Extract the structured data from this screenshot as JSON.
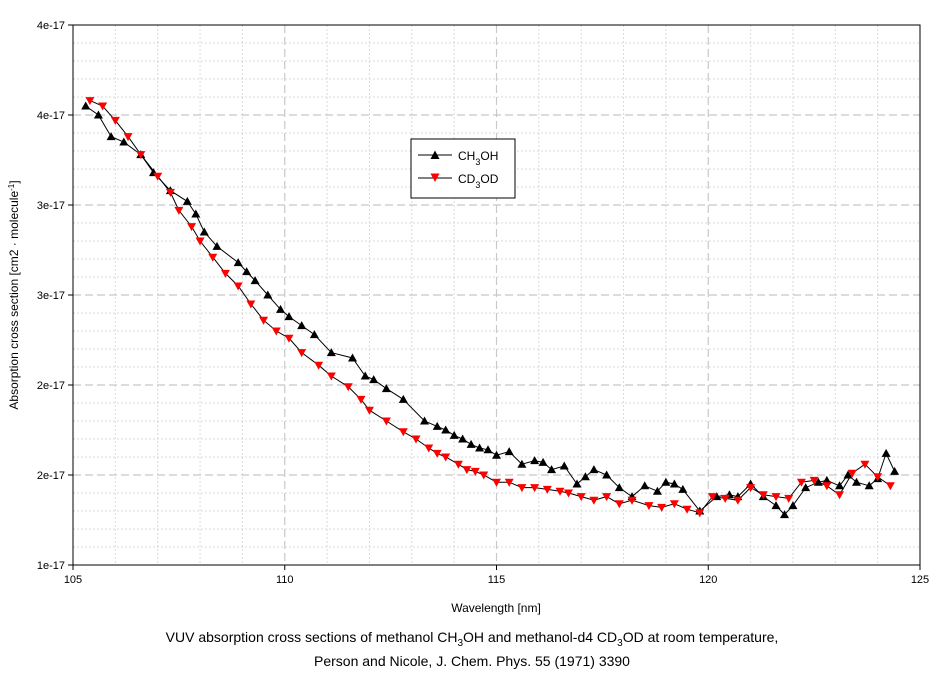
{
  "chart_data": {
    "type": "line",
    "title": "",
    "xlabel": "Wavelength [nm]",
    "ylabel_main": "Absorption cross section [cm2 · molecule",
    "ylabel_sup": "-1",
    "ylabel_end": "]",
    "xlim": [
      105,
      125
    ],
    "x_ticks": [
      105,
      110,
      115,
      120,
      125
    ],
    "x_tick_labels": [
      "105",
      "110",
      "115",
      "120",
      "125"
    ],
    "ylim": [
      1e-17,
      4e-17
    ],
    "y_ticks": [
      1e-17,
      1.5e-17,
      2e-17,
      2.5e-17,
      3e-17,
      3.5e-17,
      4e-17
    ],
    "y_tick_labels": [
      "1e-17",
      "2e-17",
      "2e-17",
      "3e-17",
      "3e-17",
      "4e-17",
      "4e-17"
    ],
    "grid": true,
    "legend_position": "upper-middle",
    "series": [
      {
        "name": "CH3OH",
        "legend_main": "CH",
        "legend_sub": "3",
        "legend_end": "OH",
        "color": "#000000",
        "marker": "triangle-up",
        "x": [
          105.3,
          105.6,
          105.9,
          106.2,
          106.6,
          106.9,
          107.3,
          107.7,
          107.9,
          108.1,
          108.4,
          108.9,
          109.1,
          109.3,
          109.6,
          109.9,
          110.1,
          110.4,
          110.7,
          111.1,
          111.6,
          111.9,
          112.1,
          112.4,
          112.8,
          113.3,
          113.6,
          113.8,
          114.0,
          114.2,
          114.4,
          114.6,
          114.8,
          115.0,
          115.3,
          115.6,
          115.9,
          116.1,
          116.3,
          116.6,
          116.9,
          117.1,
          117.3,
          117.6,
          117.9,
          118.2,
          118.5,
          118.8,
          119.0,
          119.2,
          119.4,
          119.8,
          120.2,
          120.5,
          120.7,
          121.0,
          121.3,
          121.6,
          121.8,
          122.0,
          122.3,
          122.6,
          122.8,
          123.1,
          123.3,
          123.5,
          123.8,
          124.0,
          124.2,
          124.4
        ],
        "y": [
          3.55e-17,
          3.5e-17,
          3.38e-17,
          3.35e-17,
          3.28e-17,
          3.18e-17,
          3.08e-17,
          3.02e-17,
          2.95e-17,
          2.85e-17,
          2.77e-17,
          2.68e-17,
          2.63e-17,
          2.58e-17,
          2.5e-17,
          2.42e-17,
          2.38e-17,
          2.33e-17,
          2.28e-17,
          2.18e-17,
          2.15e-17,
          2.05e-17,
          2.03e-17,
          1.98e-17,
          1.92e-17,
          1.8e-17,
          1.77e-17,
          1.75e-17,
          1.72e-17,
          1.7e-17,
          1.67e-17,
          1.65e-17,
          1.64e-17,
          1.61e-17,
          1.63e-17,
          1.56e-17,
          1.58e-17,
          1.57e-17,
          1.53e-17,
          1.55e-17,
          1.45e-17,
          1.49e-17,
          1.53e-17,
          1.5e-17,
          1.43e-17,
          1.38e-17,
          1.44e-17,
          1.41e-17,
          1.46e-17,
          1.45e-17,
          1.42e-17,
          1.3e-17,
          1.38e-17,
          1.39e-17,
          1.38e-17,
          1.45e-17,
          1.38e-17,
          1.33e-17,
          1.28e-17,
          1.33e-17,
          1.43e-17,
          1.46e-17,
          1.47e-17,
          1.44e-17,
          1.5e-17,
          1.46e-17,
          1.44e-17,
          1.48e-17,
          1.62e-17,
          1.52e-17
        ]
      },
      {
        "name": "CD3OD",
        "legend_main": "CD",
        "legend_sub": "3",
        "legend_end": "OD",
        "color": "#ff0000",
        "marker": "triangle-down",
        "x": [
          105.4,
          105.7,
          106.0,
          106.3,
          106.6,
          107.0,
          107.3,
          107.5,
          107.8,
          108.0,
          108.3,
          108.6,
          108.9,
          109.2,
          109.5,
          109.8,
          110.1,
          110.4,
          110.8,
          111.1,
          111.5,
          111.8,
          112.0,
          112.4,
          112.8,
          113.1,
          113.4,
          113.6,
          113.8,
          114.1,
          114.3,
          114.5,
          114.7,
          115.0,
          115.3,
          115.6,
          115.9,
          116.2,
          116.5,
          116.7,
          117.0,
          117.3,
          117.6,
          117.9,
          118.2,
          118.6,
          118.9,
          119.2,
          119.5,
          119.8,
          120.1,
          120.4,
          120.7,
          121.0,
          121.3,
          121.6,
          121.9,
          122.2,
          122.5,
          122.8,
          123.1,
          123.4,
          123.7,
          124.0,
          124.3
        ],
        "y": [
          3.58e-17,
          3.55e-17,
          3.47e-17,
          3.38e-17,
          3.28e-17,
          3.16e-17,
          3.07e-17,
          2.97e-17,
          2.88e-17,
          2.8e-17,
          2.71e-17,
          2.62e-17,
          2.55e-17,
          2.45e-17,
          2.36e-17,
          2.3e-17,
          2.26e-17,
          2.18e-17,
          2.11e-17,
          2.05e-17,
          1.99e-17,
          1.92e-17,
          1.86e-17,
          1.8e-17,
          1.74e-17,
          1.7e-17,
          1.65e-17,
          1.62e-17,
          1.6e-17,
          1.56e-17,
          1.53e-17,
          1.52e-17,
          1.5e-17,
          1.46e-17,
          1.46e-17,
          1.43e-17,
          1.43e-17,
          1.42e-17,
          1.41e-17,
          1.4e-17,
          1.38e-17,
          1.36e-17,
          1.38e-17,
          1.34e-17,
          1.36e-17,
          1.33e-17,
          1.32e-17,
          1.34e-17,
          1.31e-17,
          1.29e-17,
          1.38e-17,
          1.37e-17,
          1.36e-17,
          1.43e-17,
          1.39e-17,
          1.38e-17,
          1.37e-17,
          1.46e-17,
          1.47e-17,
          1.44e-17,
          1.39e-17,
          1.51e-17,
          1.56e-17,
          1.49e-17,
          1.44e-17
        ]
      }
    ]
  },
  "caption": {
    "line1_a": "VUV absorption cross sections of methanol CH",
    "line1_sub1": "3",
    "line1_b": "OH and methanol-d4 CD",
    "line1_sub2": "3",
    "line1_c": "OD at room temperature,",
    "line2": "Person and Nicole, J. Chem. Phys. 55 (1971) 3390"
  }
}
